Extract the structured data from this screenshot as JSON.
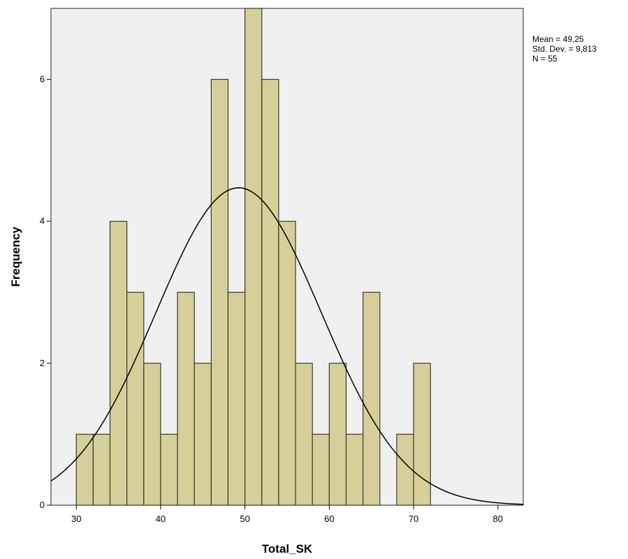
{
  "chart_data": {
    "type": "bar",
    "subtype": "histogram",
    "xlabel": "Total_SK",
    "ylabel": "Frequency",
    "xlim": [
      27,
      83
    ],
    "ylim": [
      0,
      7
    ],
    "x_ticks": [
      30,
      40,
      50,
      60,
      70,
      80
    ],
    "y_ticks": [
      0,
      2,
      4,
      6
    ],
    "bin_width": 2,
    "bins": [
      {
        "start": 30,
        "count": 1
      },
      {
        "start": 32,
        "count": 1
      },
      {
        "start": 34,
        "count": 4
      },
      {
        "start": 36,
        "count": 3
      },
      {
        "start": 38,
        "count": 2
      },
      {
        "start": 40,
        "count": 1
      },
      {
        "start": 42,
        "count": 3
      },
      {
        "start": 44,
        "count": 2
      },
      {
        "start": 46,
        "count": 6
      },
      {
        "start": 48,
        "count": 3
      },
      {
        "start": 50,
        "count": 7
      },
      {
        "start": 52,
        "count": 6
      },
      {
        "start": 54,
        "count": 4
      },
      {
        "start": 56,
        "count": 2
      },
      {
        "start": 58,
        "count": 1
      },
      {
        "start": 60,
        "count": 2
      },
      {
        "start": 62,
        "count": 1
      },
      {
        "start": 64,
        "count": 3
      },
      {
        "start": 66,
        "count": 0
      },
      {
        "start": 68,
        "count": 1
      },
      {
        "start": 70,
        "count": 2
      }
    ],
    "normal_curve": {
      "mean": 49.25,
      "std_dev": 9.813,
      "n": 55
    },
    "stats_labels": [
      "Mean = 49,25",
      "Std. Dev. = 9,813",
      "N = 55"
    ],
    "grid": false,
    "colors": {
      "bar_fill": "#d6cf9a",
      "bar_stroke": "#3a3a2a",
      "plot_bg": "#f0f0f0",
      "curve": "#000000"
    }
  }
}
